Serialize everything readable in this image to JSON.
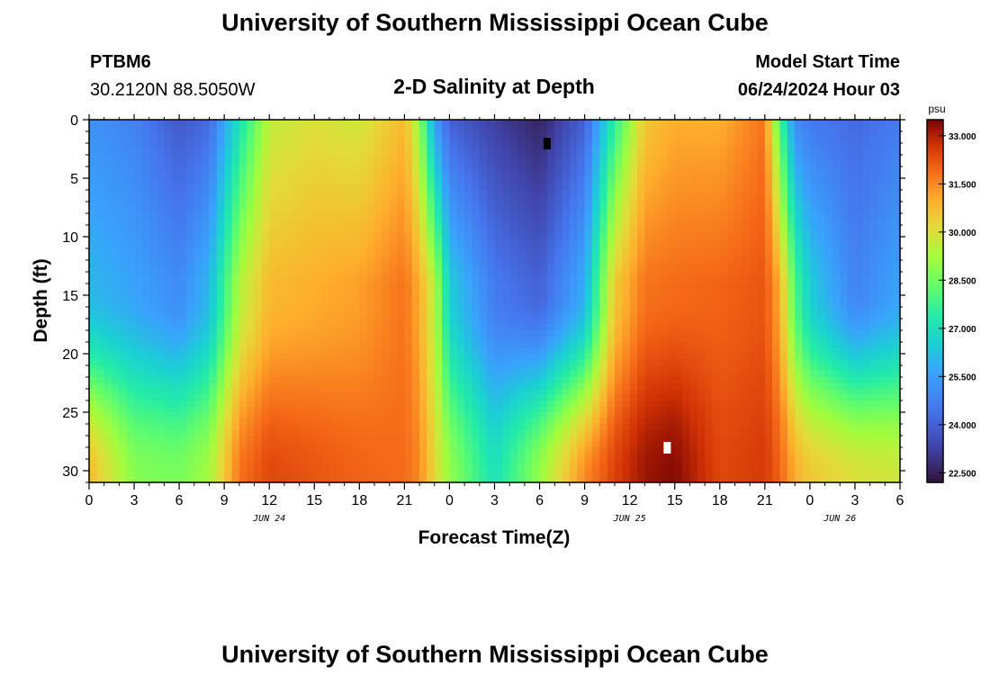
{
  "header": {
    "title": "University of Southern Mississippi Ocean Cube",
    "footer_title": "University of Southern Mississippi Ocean Cube",
    "station": "PTBM6",
    "location": "30.2120N  88.5050W",
    "plot_title": "2-D Salinity at Depth",
    "start_label": "Model Start Time",
    "start_value": "06/24/2024 Hour 03"
  },
  "chart_data": {
    "type": "heatmap",
    "title": "2-D Salinity at Depth",
    "xlabel": "Forecast Time(Z)",
    "ylabel": "Depth (ft)",
    "x_tick_labels": [
      "0",
      "3",
      "6",
      "9",
      "12",
      "15",
      "18",
      "21",
      "0",
      "3",
      "6",
      "9",
      "12",
      "15",
      "18",
      "21",
      "0",
      "3",
      "6"
    ],
    "date_labels": [
      "JUN 24",
      "JUN 25",
      "JUN 26"
    ],
    "y_ticks": [
      0,
      5,
      10,
      15,
      20,
      25,
      30
    ],
    "ylim": [
      0,
      31
    ],
    "x_hours_range": [
      0,
      54
    ],
    "colorbar": {
      "unit": "psu",
      "ticks": [
        "33.000",
        "31.500",
        "30.000",
        "28.500",
        "27.000",
        "25.500",
        "24.000",
        "22.500"
      ],
      "range": [
        22.2,
        33.5
      ]
    },
    "annotations": [
      {
        "type": "black-marker",
        "hour": 30.5,
        "depth": 2
      },
      {
        "type": "white-marker",
        "hour": 38.5,
        "depth": 28
      }
    ],
    "salinity_profiles_by_hour": [
      {
        "hour": 0,
        "top": 25.2,
        "mid": 26.0,
        "bottom": 30.8
      },
      {
        "hour": 3,
        "top": 24.8,
        "mid": 25.6,
        "bottom": 28.8
      },
      {
        "hour": 6,
        "top": 23.8,
        "mid": 25.0,
        "bottom": 28.6
      },
      {
        "hour": 8,
        "top": 24.2,
        "mid": 26.0,
        "bottom": 29.2
      },
      {
        "hour": 10,
        "top": 27.0,
        "mid": 29.4,
        "bottom": 31.8
      },
      {
        "hour": 12,
        "top": 29.6,
        "mid": 30.8,
        "bottom": 32.4
      },
      {
        "hour": 15,
        "top": 30.0,
        "mid": 31.0,
        "bottom": 32.2
      },
      {
        "hour": 18,
        "top": 29.8,
        "mid": 31.2,
        "bottom": 32.0
      },
      {
        "hour": 21,
        "top": 30.8,
        "mid": 31.8,
        "bottom": 31.9
      },
      {
        "hour": 22,
        "top": 29.0,
        "mid": 31.0,
        "bottom": 31.5
      },
      {
        "hour": 23,
        "top": 25.5,
        "mid": 29.5,
        "bottom": 30.2
      },
      {
        "hour": 24,
        "top": 24.0,
        "mid": 26.5,
        "bottom": 29.0
      },
      {
        "hour": 27,
        "top": 23.2,
        "mid": 24.6,
        "bottom": 27.0
      },
      {
        "hour": 30,
        "top": 22.6,
        "mid": 24.0,
        "bottom": 29.0
      },
      {
        "hour": 33,
        "top": 24.0,
        "mid": 25.8,
        "bottom": 31.5
      },
      {
        "hour": 35,
        "top": 27.5,
        "mid": 30.5,
        "bottom": 32.5
      },
      {
        "hour": 37,
        "top": 30.5,
        "mid": 31.8,
        "bottom": 33.2
      },
      {
        "hour": 39,
        "top": 31.0,
        "mid": 31.9,
        "bottom": 33.4
      },
      {
        "hour": 42,
        "top": 31.0,
        "mid": 32.0,
        "bottom": 32.4
      },
      {
        "hour": 45,
        "top": 31.8,
        "mid": 32.2,
        "bottom": 32.6
      },
      {
        "hour": 46,
        "top": 28.0,
        "mid": 31.0,
        "bottom": 32.0
      },
      {
        "hour": 47,
        "top": 25.0,
        "mid": 28.0,
        "bottom": 31.0
      },
      {
        "hour": 48,
        "top": 24.6,
        "mid": 26.5,
        "bottom": 30.5
      },
      {
        "hour": 51,
        "top": 24.2,
        "mid": 24.8,
        "bottom": 30.0
      },
      {
        "hour": 54,
        "top": 24.6,
        "mid": 25.6,
        "bottom": 29.8
      }
    ]
  }
}
